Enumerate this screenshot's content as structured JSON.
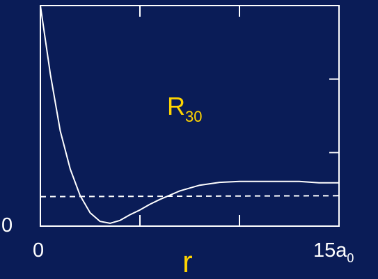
{
  "chart_data": {
    "type": "line",
    "title": "",
    "xlabel": "r",
    "ylabel": "",
    "xlim": [
      0,
      15
    ],
    "ylim": [
      -0.16,
      1.0
    ],
    "grid": false,
    "x_ticks": {
      "left": "0",
      "right_main": "15a",
      "right_sub": "0"
    },
    "y_ticks": {
      "bottom": "0"
    },
    "annotation": {
      "main": "R",
      "sub": "30"
    },
    "series": [
      {
        "style": "solid",
        "x": [
          0,
          0.5,
          1.0,
          1.5,
          2.0,
          2.5,
          3.0,
          3.5,
          4.0,
          4.5,
          5.0,
          5.5,
          6.0,
          7.0,
          8.0,
          9.0,
          10.0,
          11.0,
          12.0,
          13.0,
          14.0,
          15.0
        ],
        "y": [
          1.0,
          0.64,
          0.34,
          0.14,
          0.0,
          -0.09,
          -0.135,
          -0.145,
          -0.13,
          -0.1,
          -0.075,
          -0.045,
          -0.02,
          0.025,
          0.055,
          0.07,
          0.075,
          0.075,
          0.075,
          0.075,
          0.068,
          0.068
        ]
      },
      {
        "style": "dashed",
        "x": [
          0,
          15
        ],
        "y": [
          -0.005,
          0.0
        ]
      }
    ],
    "colors": {
      "background": "#0a1c57",
      "curve": "#ffffff",
      "axes": "#ffffff",
      "labels": "#ffd400"
    }
  }
}
